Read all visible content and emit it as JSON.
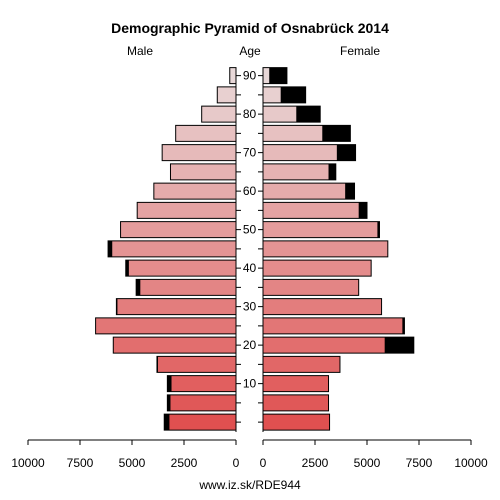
{
  "chart_data": {
    "type": "bar",
    "title": "Demographic Pyramid of Osnabrück 2014",
    "left_label": "Male",
    "center_label": "Age",
    "right_label": "Female",
    "footer": "www.iz.sk/RDE944",
    "x_range": [
      0,
      10000
    ],
    "x_ticks": [
      0,
      2500,
      5000,
      7500,
      10000
    ],
    "x_tick_labels": [
      "0",
      "2500",
      "5000",
      "7500",
      "10000"
    ],
    "age_ticks": [
      10,
      20,
      30,
      40,
      50,
      60,
      70,
      80,
      90
    ],
    "age_groups": [
      "0-4",
      "5-9",
      "10-14",
      "15-19",
      "20-24",
      "25-29",
      "30-34",
      "35-39",
      "40-44",
      "45-49",
      "50-54",
      "55-59",
      "60-64",
      "65-69",
      "70-74",
      "75-79",
      "80-84",
      "85-89",
      "90+"
    ],
    "series": [
      {
        "name": "Male",
        "values": [
          3450,
          3300,
          3300,
          3800,
          5900,
          6750,
          5750,
          4800,
          5300,
          6150,
          5550,
          4750,
          3950,
          3150,
          3550,
          2900,
          1650,
          900,
          300
        ],
        "highlight": [
          250,
          150,
          200,
          50,
          0,
          0,
          50,
          200,
          150,
          200,
          0,
          0,
          0,
          0,
          0,
          0,
          0,
          0,
          0
        ]
      },
      {
        "name": "Female",
        "values": [
          3200,
          3150,
          3150,
          3700,
          7250,
          6800,
          5700,
          4600,
          5200,
          6000,
          5600,
          5000,
          4400,
          3500,
          4450,
          4200,
          2750,
          2050,
          1150
        ],
        "highlight": [
          0,
          0,
          0,
          0,
          1400,
          100,
          0,
          0,
          0,
          0,
          100,
          400,
          450,
          350,
          900,
          1350,
          1150,
          1200,
          850
        ]
      }
    ],
    "colors": {
      "young": "#e05050",
      "old": "#e8d8d8",
      "highlight": "#000000"
    }
  }
}
